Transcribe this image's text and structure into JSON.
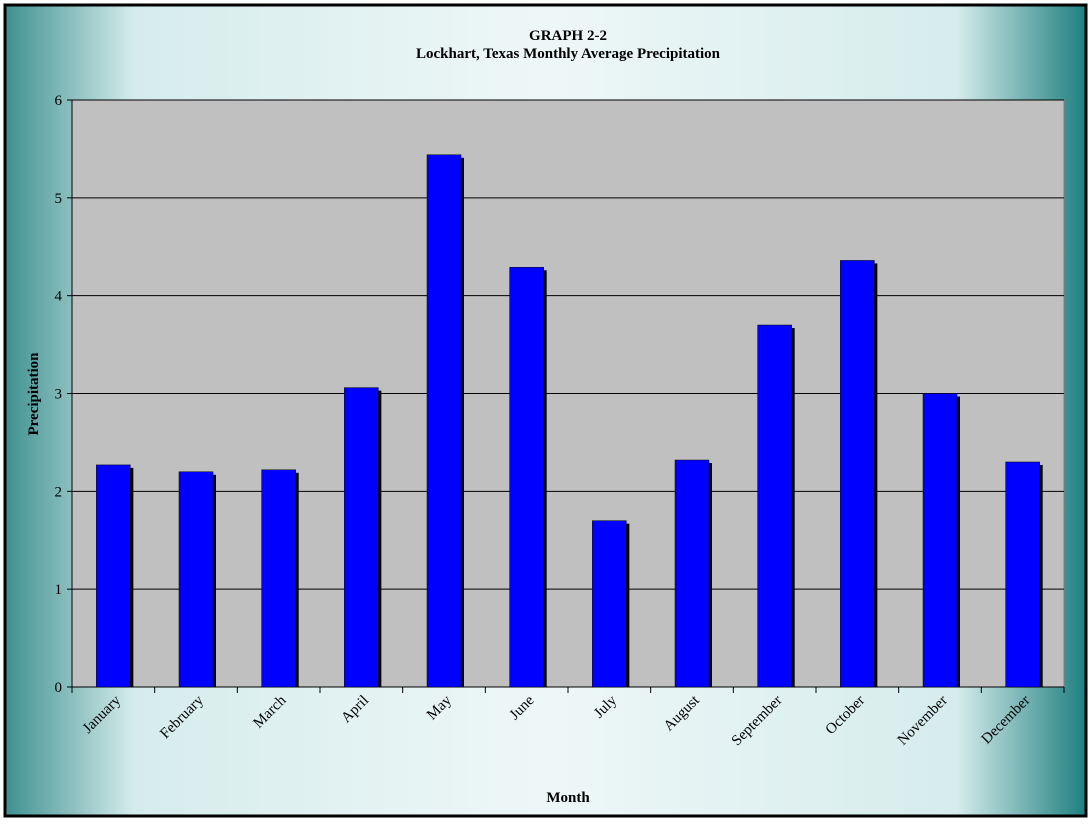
{
  "chart_data": {
    "type": "bar",
    "title": "GRAPH  2-2",
    "subtitle": "Lockhart, Texas Monthly Average Precipitation",
    "x_label": "Month",
    "y_label": "Precipitation",
    "categories": [
      "January",
      "February",
      "March",
      "April",
      "May",
      "June",
      "July",
      "August",
      "September",
      "October",
      "November",
      "December"
    ],
    "values": [
      2.27,
      2.2,
      2.22,
      3.06,
      5.44,
      4.29,
      1.7,
      2.32,
      3.7,
      4.36,
      3.0,
      2.3
    ],
    "color": "#0000ff",
    "ylim": [
      0,
      6
    ],
    "yticks": [
      0,
      1,
      2,
      3,
      4,
      5,
      6
    ],
    "grid": true
  }
}
